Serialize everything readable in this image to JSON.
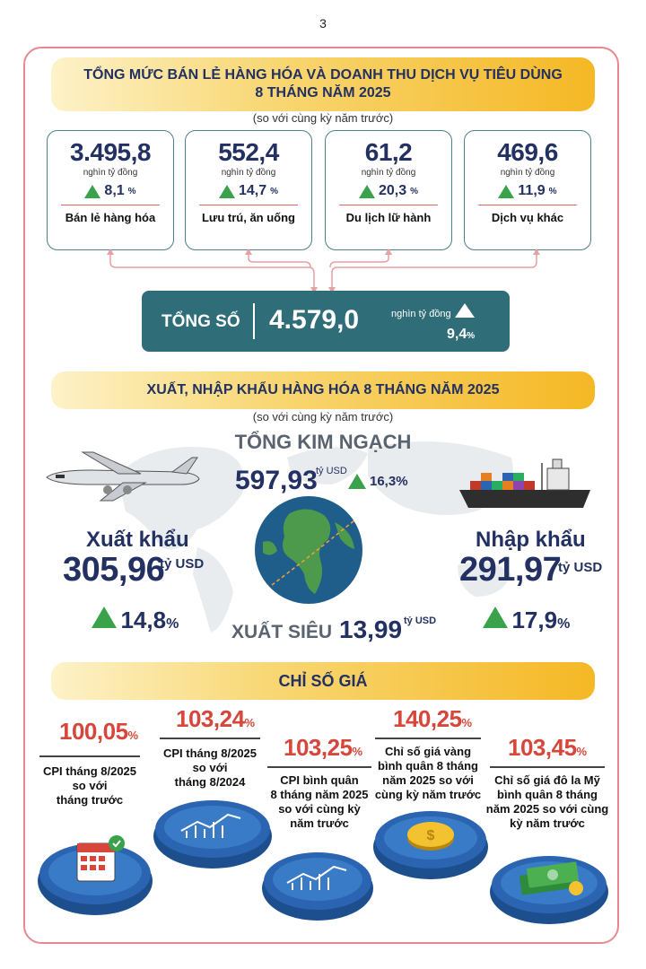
{
  "page_number": "3",
  "retail": {
    "title_line1": "TỔNG MỨC BÁN LẺ HÀNG HÓA VÀ DOANH THU DỊCH VỤ TIÊU DÙNG",
    "title_line2": "8 THÁNG NĂM 2025",
    "subtitle": "(so với cùng kỳ năm trước)",
    "cards": [
      {
        "value": "3.495,8",
        "unit": "nghìn tỷ đồng",
        "pct": "8,1",
        "pct_sign": "%",
        "label": "Bán lẻ hàng hóa"
      },
      {
        "value": "552,4",
        "unit": "nghìn tỷ đồng",
        "pct": "14,7",
        "pct_sign": "%",
        "label": "Lưu trú, ăn uống"
      },
      {
        "value": "61,2",
        "unit": "nghìn tỷ đồng",
        "pct": "20,3",
        "pct_sign": "%",
        "label": "Du lịch lữ hành"
      },
      {
        "value": "469,6",
        "unit": "nghìn tỷ đồng",
        "pct": "11,9",
        "pct_sign": "%",
        "label": "Dịch vụ khác"
      }
    ],
    "total": {
      "label": "TỔNG SỐ",
      "value": "4.579,0",
      "unit": "nghìn tỷ đồng",
      "pct": "9,4",
      "pct_sign": "%"
    }
  },
  "trade": {
    "title": "XUẤT, NHẬP KHẨU HÀNG HÓA 8 THÁNG NĂM 2025",
    "subtitle": "(so với cùng kỳ năm trước)",
    "total_label": "TỔNG KIM NGẠCH",
    "total_value": "597,93",
    "total_unit": "tỷ USD",
    "total_pct": "16,3%",
    "export_label": "Xuất khẩu",
    "export_value": "305,96",
    "export_unit": "tỷ USD",
    "export_pct": "14,8",
    "import_label": "Nhập khẩu",
    "import_value": "291,97",
    "import_unit": "tỷ USD",
    "import_pct": "17,9",
    "pct_sign": "%",
    "surplus_label": "XUẤT SIÊU",
    "surplus_value": "13,99",
    "surplus_unit": "tỷ USD"
  },
  "prices": {
    "title": "CHỈ SỐ GIÁ",
    "pct_sign": "%",
    "items": [
      {
        "value": "100,05",
        "line1": "CPI tháng 8/2025",
        "line2": "so với",
        "line3": "tháng trước",
        "line4": ""
      },
      {
        "value": "103,24",
        "line1": "CPI tháng 8/2025",
        "line2": "so với",
        "line3": "tháng 8/2024",
        "line4": ""
      },
      {
        "value": "103,25",
        "line1": "CPI bình quân",
        "line2": "8 tháng năm 2025",
        "line3": "so với cùng kỳ",
        "line4": "năm trước"
      },
      {
        "value": "140,25",
        "line1": "Chỉ số giá vàng",
        "line2": "bình quân 8 tháng",
        "line3": "năm 2025 so với",
        "line4": "cùng kỳ năm trước"
      },
      {
        "value": "103,45",
        "line1": "Chỉ số giá đô la Mỹ",
        "line2": "bình quân 8 tháng",
        "line3": "năm 2025 so với cùng",
        "line4": "kỳ năm trước"
      }
    ]
  },
  "colors": {
    "navy": "#233062",
    "teal": "#2f6e79",
    "green": "#3aa24a",
    "red": "#d7463a",
    "gold": "#f5b825",
    "blue": "#2b64b0"
  }
}
